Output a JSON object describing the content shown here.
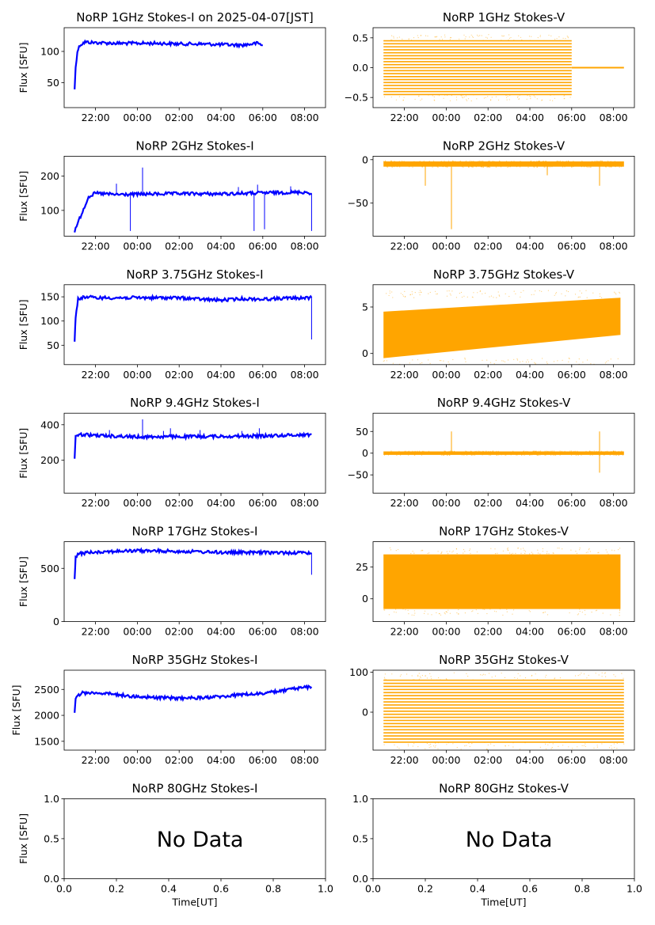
{
  "figure": {
    "colors": {
      "stokes_i": "#0000ff",
      "stokes_v": "#ffa500",
      "axis": "#000000"
    },
    "time_ticks": [
      "22:00",
      "00:00",
      "02:00",
      "04:00",
      "06:00",
      "08:00"
    ],
    "ylabel": "Flux [SFU]",
    "xlabel": "Time[UT]",
    "no_data_text": "No Data"
  },
  "chart_data": [
    {
      "id": "1GHz-I",
      "type": "line",
      "title": "NoRP 1GHz Stokes-I on 2025-04-07[JST]",
      "ylabel": "Flux [SFU]",
      "series_color": "#0000ff",
      "ylim": [
        10,
        138
      ],
      "yticks": [
        50,
        100
      ],
      "ytick_labels": [
        "50",
        "100"
      ],
      "x_range_hours_ut": [
        -3.5,
        9.0
      ],
      "data_span_ut": [
        "21:00",
        "06:00"
      ],
      "series": [
        {
          "x": [
            "21:00",
            "21:03",
            "21:08",
            "21:15",
            "21:30",
            "22:00",
            "23:00",
            "00:00",
            "01:00",
            "02:00",
            "03:00",
            "04:00",
            "05:00",
            "05:30",
            "05:45",
            "06:00"
          ],
          "y": [
            40,
            75,
            100,
            110,
            115,
            114,
            113,
            113,
            113,
            112,
            112,
            111,
            110,
            112,
            113,
            110
          ]
        }
      ]
    },
    {
      "id": "1GHz-V",
      "type": "scatter",
      "title": "NoRP 1GHz Stokes-V",
      "series_color": "#ffa500",
      "ylim": [
        -0.67,
        0.67
      ],
      "yticks": [
        -0.5,
        0,
        0.5
      ],
      "ytick_labels": [
        "−0.5",
        "0.0",
        "0.5"
      ],
      "x_range_hours_ut": [
        -3.5,
        9.0
      ],
      "band": {
        "start_ut": "21:00",
        "end_ut": "06:00",
        "min": -0.45,
        "max": 0.45,
        "levels": 19
      },
      "flat_segment": {
        "start_ut": "06:00",
        "end_ut": "08:30",
        "value": 0
      }
    },
    {
      "id": "2GHz-I",
      "type": "line",
      "title": "NoRP 2GHz Stokes-I",
      "ylabel": "Flux [SFU]",
      "series_color": "#0000ff",
      "ylim": [
        25,
        258
      ],
      "yticks": [
        100,
        200
      ],
      "ytick_labels": [
        "100",
        "200"
      ],
      "x_range_hours_ut": [
        -3.5,
        9.0
      ],
      "series": [
        {
          "x": [
            "21:00",
            "21:20",
            "21:40",
            "22:00",
            "23:00",
            "00:00",
            "02:00",
            "04:00",
            "06:00",
            "07:00",
            "08:00",
            "08:20"
          ],
          "y": [
            40,
            90,
            140,
            150,
            146,
            147,
            149,
            148,
            151,
            152,
            153,
            150
          ]
        }
      ],
      "spikes": [
        {
          "t": "23:00",
          "v": 178
        },
        {
          "t": "00:15",
          "v": 225
        },
        {
          "t": "04:50",
          "v": 168
        },
        {
          "t": "05:45",
          "v": 175
        },
        {
          "t": "07:20",
          "v": 170
        }
      ],
      "dips": [
        {
          "t": "23:40",
          "v": 40
        },
        {
          "t": "05:35",
          "v": 40
        },
        {
          "t": "06:05",
          "v": 45
        },
        {
          "t": "08:20",
          "v": 40
        }
      ]
    },
    {
      "id": "2GHz-V",
      "type": "scatter",
      "title": "NoRP 2GHz Stokes-V",
      "series_color": "#ffa500",
      "ylim": [
        -88,
        4
      ],
      "yticks": [
        -50,
        0
      ],
      "ytick_labels": [
        "−50",
        "0"
      ],
      "x_range_hours_ut": [
        -3.5,
        9.0
      ],
      "band": {
        "start_ut": "21:00",
        "end_ut": "08:30",
        "min": -8,
        "max": -2
      },
      "dips": [
        {
          "t": "23:00",
          "v": -30
        },
        {
          "t": "00:15",
          "v": -80
        },
        {
          "t": "04:50",
          "v": -18
        },
        {
          "t": "07:20",
          "v": -30
        }
      ]
    },
    {
      "id": "3.75GHz-I",
      "type": "line",
      "title": "NoRP 3.75GHz Stokes-I",
      "ylabel": "Flux [SFU]",
      "series_color": "#0000ff",
      "ylim": [
        10,
        175
      ],
      "yticks": [
        50,
        100,
        150
      ],
      "ytick_labels": [
        "50",
        "100",
        "150"
      ],
      "x_range_hours_ut": [
        -3.5,
        9.0
      ],
      "series": [
        {
          "x": [
            "21:00",
            "21:03",
            "21:10",
            "21:30",
            "22:00",
            "00:00",
            "02:00",
            "03:00",
            "04:00",
            "05:00",
            "06:00",
            "07:00",
            "08:20"
          ],
          "y": [
            60,
            110,
            145,
            150,
            148,
            148,
            148,
            145,
            143,
            146,
            145,
            147,
            148
          ]
        }
      ],
      "dips": [
        {
          "t": "08:20",
          "v": 62
        }
      ]
    },
    {
      "id": "3.75GHz-V",
      "type": "scatter",
      "title": "NoRP 3.75GHz Stokes-V",
      "series_color": "#ffa500",
      "ylim": [
        -1.2,
        7.4
      ],
      "yticks": [
        0,
        5
      ],
      "ytick_labels": [
        "0",
        "5"
      ],
      "x_range_hours_ut": [
        -3.5,
        9.0
      ],
      "band": {
        "start_ut": "21:00",
        "end_ut": "08:20",
        "min_start": -0.5,
        "min_end": 2.0,
        "max_start": 4.5,
        "max_end": 6.0
      }
    },
    {
      "id": "9.4GHz-I",
      "type": "line",
      "title": "NoRP 9.4GHz Stokes-I",
      "ylabel": "Flux [SFU]",
      "series_color": "#0000ff",
      "ylim": [
        15,
        465
      ],
      "yticks": [
        200,
        400
      ],
      "ytick_labels": [
        "200",
        "400"
      ],
      "x_range_hours_ut": [
        -3.5,
        9.0
      ],
      "series": [
        {
          "x": [
            "21:00",
            "21:03",
            "21:10",
            "22:00",
            "00:00",
            "02:00",
            "04:00",
            "06:00",
            "08:20"
          ],
          "y": [
            210,
            330,
            345,
            340,
            332,
            333,
            335,
            337,
            345
          ]
        }
      ],
      "spikes": [
        {
          "t": "22:40",
          "v": 370
        },
        {
          "t": "00:15",
          "v": 430
        },
        {
          "t": "01:15",
          "v": 365
        },
        {
          "t": "01:35",
          "v": 380
        },
        {
          "t": "03:00",
          "v": 370
        },
        {
          "t": "05:00",
          "v": 365
        },
        {
          "t": "05:50",
          "v": 380
        }
      ]
    },
    {
      "id": "9.4GHz-V",
      "type": "scatter",
      "title": "NoRP 9.4GHz Stokes-V",
      "series_color": "#ffa500",
      "ylim": [
        -92,
        92
      ],
      "yticks": [
        -50,
        0,
        50
      ],
      "ytick_labels": [
        "−50",
        "0",
        "50"
      ],
      "x_range_hours_ut": [
        -3.5,
        9.0
      ],
      "band": {
        "start_ut": "21:00",
        "end_ut": "08:30",
        "min": -4,
        "max": 4
      },
      "spikes": [
        {
          "t": "00:15",
          "v": 50
        },
        {
          "t": "07:20",
          "v": 50
        }
      ],
      "dips": [
        {
          "t": "07:20",
          "v": -45
        }
      ]
    },
    {
      "id": "17GHz-I",
      "type": "line",
      "title": "NoRP 17GHz Stokes-I",
      "ylabel": "Flux [SFU]",
      "series_color": "#0000ff",
      "ylim": [
        0,
        750
      ],
      "yticks": [
        0,
        500
      ],
      "ytick_labels": [
        "0",
        "500"
      ],
      "x_range_hours_ut": [
        -3.5,
        9.0
      ],
      "series": [
        {
          "x": [
            "21:00",
            "21:03",
            "21:15",
            "22:00",
            "00:00",
            "02:00",
            "04:00",
            "06:00",
            "08:20"
          ],
          "y": [
            400,
            610,
            640,
            655,
            665,
            660,
            650,
            648,
            645
          ]
        }
      ],
      "dips": [
        {
          "t": "08:20",
          "v": 440
        }
      ]
    },
    {
      "id": "17GHz-V",
      "type": "scatter",
      "title": "NoRP 17GHz Stokes-V",
      "series_color": "#ffa500",
      "ylim": [
        -18,
        45
      ],
      "yticks": [
        0,
        25
      ],
      "ytick_labels": [
        "0",
        "25"
      ],
      "x_range_hours_ut": [
        -3.5,
        9.0
      ],
      "band": {
        "start_ut": "21:00",
        "end_ut": "08:20",
        "min": -8,
        "max": 35
      }
    },
    {
      "id": "35GHz-I",
      "type": "line",
      "title": "NoRP 35GHz Stokes-I",
      "ylabel": "Flux [SFU]",
      "series_color": "#0000ff",
      "ylim": [
        1330,
        2870
      ],
      "yticks": [
        1500,
        2000,
        2500
      ],
      "ytick_labels": [
        "1500",
        "2000",
        "2500"
      ],
      "x_range_hours_ut": [
        -3.5,
        9.0
      ],
      "series": [
        {
          "x": [
            "21:00",
            "21:03",
            "21:20",
            "22:00",
            "23:00",
            "00:00",
            "01:00",
            "02:00",
            "03:00",
            "04:00",
            "05:00",
            "06:00",
            "07:00",
            "08:00",
            "08:20"
          ],
          "y": [
            2050,
            2350,
            2430,
            2440,
            2400,
            2360,
            2340,
            2330,
            2340,
            2360,
            2400,
            2420,
            2480,
            2540,
            2550
          ]
        }
      ]
    },
    {
      "id": "35GHz-V",
      "type": "scatter",
      "title": "NoRP 35GHz Stokes-V",
      "series_color": "#ffa500",
      "ylim": [
        -95,
        105
      ],
      "yticks": [
        0,
        100
      ],
      "ytick_labels": [
        "0",
        "100"
      ],
      "x_range_hours_ut": [
        -3.5,
        9.0
      ],
      "band": {
        "start_ut": "21:00",
        "end_ut": "08:30",
        "min": -75,
        "max": 80,
        "levels": 21
      }
    },
    {
      "id": "80GHz-I",
      "type": "line",
      "title": "NoRP 80GHz Stokes-I",
      "ylabel": "Flux [SFU]",
      "xlabel": "Time[UT]",
      "xlim": [
        0,
        1
      ],
      "ylim": [
        0,
        1
      ],
      "xticks": [
        "0.0",
        "0.2",
        "0.4",
        "0.6",
        "0.8",
        "1.0"
      ],
      "yticks": [
        0,
        0.5,
        1
      ],
      "ytick_labels": [
        "0.0",
        "0.5",
        "1.0"
      ],
      "annotation": "No Data"
    },
    {
      "id": "80GHz-V",
      "type": "line",
      "title": "NoRP 80GHz Stokes-V",
      "xlabel": "Time[UT]",
      "xlim": [
        0,
        1
      ],
      "ylim": [
        0,
        1
      ],
      "xticks": [
        "0.0",
        "0.2",
        "0.4",
        "0.6",
        "0.8",
        "1.0"
      ],
      "yticks": [
        0,
        0.5,
        1
      ],
      "ytick_labels": [
        "0.0",
        "0.5",
        "1.0"
      ],
      "annotation": "No Data"
    }
  ]
}
